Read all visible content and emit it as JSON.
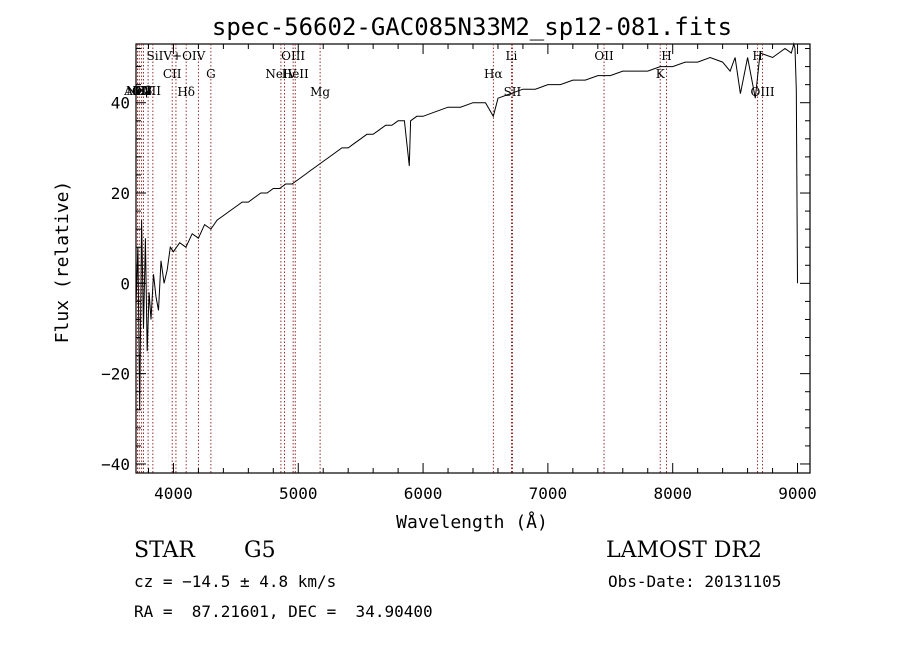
{
  "chart_data": {
    "type": "line",
    "title": "spec-56602-GAC085N33M2_sp12-081.fits",
    "xlabel": "Wavelength (Å)",
    "ylabel": "Flux (relative)",
    "xlim": [
      3700,
      9100
    ],
    "ylim": [
      -42,
      53
    ],
    "xticks": [
      4000,
      5000,
      6000,
      7000,
      8000,
      9000
    ],
    "yticks": [
      -40,
      -20,
      0,
      20,
      40
    ],
    "xtick_labels": [
      "4000",
      "5000",
      "6000",
      "7000",
      "8000",
      "9000"
    ],
    "ytick_labels": [
      "−40",
      "−20",
      "0",
      "20",
      "40"
    ],
    "grid": false,
    "line_color": "#000000",
    "marker_color": "#8b1a1a",
    "series": [
      {
        "x": [
          3700,
          3715,
          3730,
          3745,
          3760,
          3775,
          3790,
          3805,
          3820,
          3840,
          3860,
          3880,
          3900,
          3925,
          3950,
          3975,
          4000,
          4050,
          4100,
          4150,
          4200,
          4250,
          4300,
          4350,
          4400,
          4450,
          4500,
          4550,
          4600,
          4650,
          4700,
          4750,
          4800,
          4850,
          4900,
          4950,
          5000,
          5050,
          5100,
          5150,
          5200,
          5250,
          5300,
          5350,
          5400,
          5450,
          5500,
          5550,
          5600,
          5650,
          5700,
          5750,
          5800,
          5850,
          5890,
          5900,
          5950,
          6000,
          6100,
          6200,
          6300,
          6400,
          6500,
          6563,
          6600,
          6700,
          6800,
          6900,
          7000,
          7100,
          7200,
          7300,
          7400,
          7500,
          7600,
          7700,
          7800,
          7900,
          8000,
          8100,
          8200,
          8300,
          8400,
          8460,
          8500,
          8542,
          8600,
          8662,
          8700,
          8800,
          8850,
          8900,
          8950,
          8970,
          8980,
          8990,
          9000
        ],
        "y": [
          -5,
          8,
          -28,
          14,
          -10,
          10,
          -15,
          -2,
          -8,
          2,
          -3,
          -6,
          5,
          0,
          3,
          8,
          7,
          9,
          8,
          11,
          10,
          13,
          12,
          14,
          15,
          16,
          17,
          18,
          18,
          19,
          20,
          20,
          21,
          21,
          22,
          22,
          23,
          24,
          25,
          26,
          27,
          28,
          29,
          30,
          30,
          31,
          32,
          33,
          33,
          34,
          35,
          35,
          36,
          36,
          26,
          36,
          37,
          37,
          38,
          39,
          39,
          40,
          40,
          37,
          41,
          42,
          43,
          43,
          44,
          44,
          45,
          45,
          46,
          46,
          47,
          47,
          47,
          48,
          48,
          49,
          49,
          50,
          49,
          47,
          50,
          42,
          50,
          41,
          51,
          50,
          51,
          52,
          51,
          53,
          52,
          43,
          0
        ]
      }
    ],
    "lines": [
      {
        "label": "AlIII",
        "x": 3712,
        "row": 3
      },
      {
        "label": "NeV",
        "x": 3726,
        "row": 3
      },
      {
        "label": "OII",
        "x": 3745,
        "row": 3
      },
      {
        "label": "Hβ",
        "x": 3760,
        "row": 3
      },
      {
        "label": "CaII",
        "x": 3797,
        "row": 3
      },
      {
        "label": "",
        "x": 3835,
        "row": 0
      },
      {
        "label": "CII",
        "x": 3990,
        "row": 1
      },
      {
        "label": "SiIV+OIV",
        "x": 4020,
        "row": 0
      },
      {
        "label": "Hδ",
        "x": 4102,
        "row": 2
      },
      {
        "label": "",
        "x": 4200,
        "row": 0
      },
      {
        "label": "G",
        "x": 4300,
        "row": 1
      },
      {
        "label": "NeIV",
        "x": 4861,
        "row": 1
      },
      {
        "label": "",
        "x": 4890,
        "row": 0
      },
      {
        "label": "OIII",
        "x": 4959,
        "row": 0
      },
      {
        "label": "HeII",
        "x": 4976,
        "row": 1
      },
      {
        "label": "Mg",
        "x": 5175,
        "row": 2
      },
      {
        "label": "Hα",
        "x": 6563,
        "row": 1
      },
      {
        "label": "SII",
        "x": 6716,
        "row": 2
      },
      {
        "label": "Li",
        "x": 6708,
        "row": 0
      },
      {
        "label": "OII",
        "x": 7450,
        "row": 0
      },
      {
        "label": "K",
        "x": 7900,
        "row": 1
      },
      {
        "label": "H",
        "x": 7950,
        "row": 0
      },
      {
        "label": "H",
        "x": 8680,
        "row": 0
      },
      {
        "label": "OIII",
        "x": 8720,
        "row": 2
      }
    ]
  },
  "info": {
    "obj_class": "STAR",
    "subclass": "G5",
    "survey": "LAMOST DR2",
    "cz": "cz = −14.5 ± 4.8 km/s",
    "obs_date": "Obs-Date: 20131105",
    "coords": "RA =  87.21601, DEC =  34.90400"
  }
}
